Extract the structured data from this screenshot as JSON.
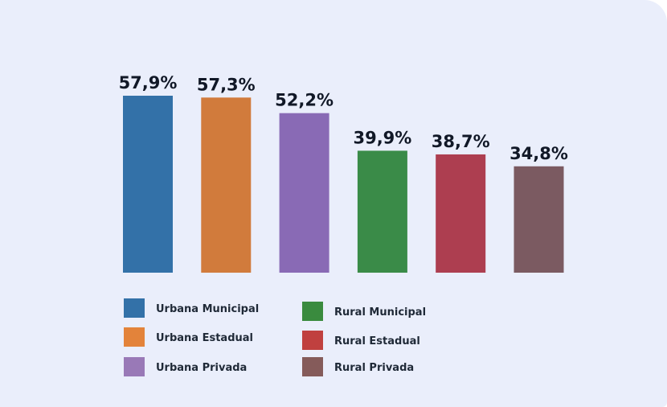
{
  "chart_data": {
    "type": "bar",
    "title": "",
    "xlabel": "",
    "ylabel": "",
    "ylim": [
      0,
      57.9
    ],
    "grid": false,
    "legend_placement": "bottom",
    "categories": [
      "Urbana Municipal",
      "Urbana Estadual",
      "Urbana Privada",
      "Rural Municipal",
      "Rural Estadual",
      "Rural Privada"
    ],
    "values": [
      57.9,
      57.3,
      52.2,
      39.9,
      38.7,
      34.8
    ],
    "value_labels": [
      "57,9%",
      "57,3%",
      "52,2%",
      "39,9%",
      "38,7%",
      "34,8%"
    ],
    "bar_colors": [
      "#3371a8",
      "#d17b3c",
      "#896ab5",
      "#3a8b48",
      "#ad3e50",
      "#7b5a61"
    ],
    "legend": [
      {
        "label": "Urbana Municipal",
        "color": "#3371a8"
      },
      {
        "label": "Urbana Estadual",
        "color": "#e3833a"
      },
      {
        "label": "Urbana Privada",
        "color": "#9979b7"
      },
      {
        "label": "Rural Municipal",
        "color": "#3a8b3e"
      },
      {
        "label": "Rural Estadual",
        "color": "#c0403f"
      },
      {
        "label": "Rural Privada",
        "color": "#855b5a"
      }
    ]
  }
}
